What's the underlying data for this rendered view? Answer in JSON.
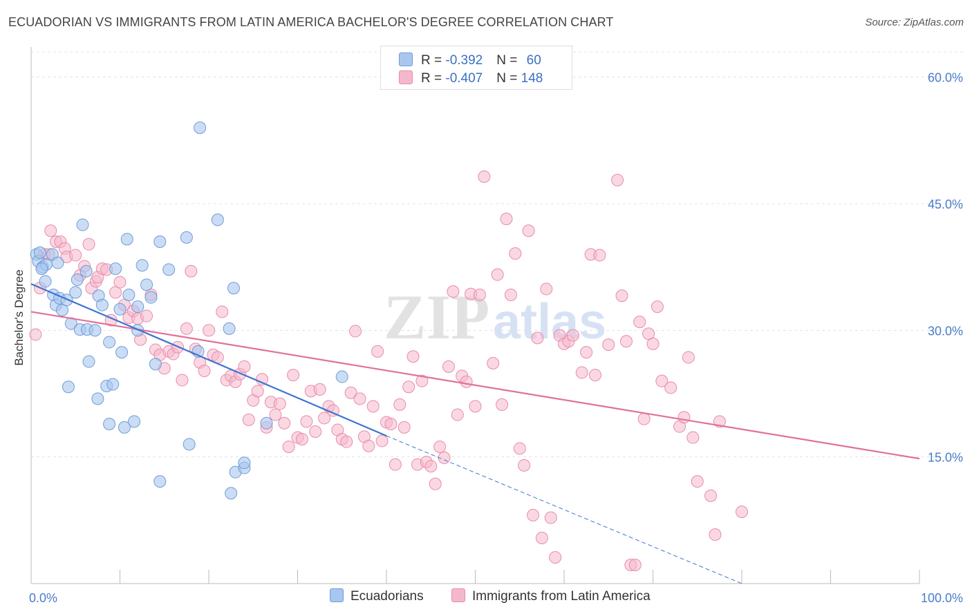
{
  "title": "ECUADORIAN VS IMMIGRANTS FROM LATIN AMERICA BACHELOR'S DEGREE CORRELATION CHART",
  "source": "Source: ZipAtlas.com",
  "watermark": {
    "zip": "ZIP",
    "atlas": "atlas"
  },
  "legend_top": [
    {
      "r_label": "R = ",
      "r_value": "-0.392",
      "n_label": "N = ",
      "n_value": "60"
    },
    {
      "r_label": "R = ",
      "r_value": "-0.407",
      "n_label": "N = ",
      "n_value": "148"
    }
  ],
  "legend_bottom": [
    "Ecuadorians",
    "Immigrants from Latin America"
  ],
  "colors": {
    "blue_fill": "#a9c6ef",
    "blue_stroke": "#6f9bd8",
    "blue_line": "#3a74d0",
    "pink_fill": "#f5b8cb",
    "pink_stroke": "#e98aab",
    "pink_line": "#e0709a",
    "grid": "#e3e3e3",
    "tick_text": "#4a7cc9"
  },
  "chart_data": {
    "type": "scatter",
    "title": "ECUADORIAN VS IMMIGRANTS FROM LATIN AMERICA BACHELOR'S DEGREE CORRELATION CHART",
    "xlabel": "",
    "ylabel": "Bachelor's Degree",
    "xlim": [
      0,
      100
    ],
    "ylim": [
      0,
      63
    ],
    "x_tick_labels": [
      "0.0%",
      "100.0%"
    ],
    "y_ticks": [
      15,
      30,
      45,
      60
    ],
    "y_tick_labels": [
      "15.0%",
      "30.0%",
      "45.0%",
      "60.0%"
    ],
    "grid": true,
    "series": [
      {
        "name": "Ecuadorians",
        "r": -0.392,
        "n": 60,
        "trend": {
          "x0": 0,
          "y0": 35.5,
          "x1": 40,
          "y1": 17.5,
          "dashed_to_x": 80,
          "dashed_to_y": 0
        },
        "points": [
          [
            0.6,
            39
          ],
          [
            0.8,
            38.2
          ],
          [
            1,
            39.2
          ],
          [
            1.3,
            37.5
          ],
          [
            1.7,
            37.8
          ],
          [
            1.6,
            35.8
          ],
          [
            2.4,
            39
          ],
          [
            2.5,
            34.2
          ],
          [
            2.8,
            33
          ],
          [
            3.2,
            33.8
          ],
          [
            3.5,
            32.4
          ],
          [
            4,
            33.6
          ],
          [
            4.2,
            23.3
          ],
          [
            4.5,
            30.8
          ],
          [
            5,
            34.5
          ],
          [
            5.2,
            36
          ],
          [
            5.5,
            30.1
          ],
          [
            6.2,
            37
          ],
          [
            6.3,
            30.1
          ],
          [
            6.5,
            26.3
          ],
          [
            7.2,
            30
          ],
          [
            7.5,
            21.9
          ],
          [
            7.6,
            34.1
          ],
          [
            8,
            33
          ],
          [
            8.5,
            23.4
          ],
          [
            8.8,
            28.6
          ],
          [
            8.8,
            18.9
          ],
          [
            9.2,
            23.6
          ],
          [
            9.5,
            37.3
          ],
          [
            10,
            32.5
          ],
          [
            10.2,
            27.4
          ],
          [
            10.5,
            18.5
          ],
          [
            10.8,
            40.8
          ],
          [
            11,
            34.2
          ],
          [
            11.6,
            19.2
          ],
          [
            12,
            30
          ],
          [
            12,
            32.8
          ],
          [
            12.5,
            37.7
          ],
          [
            13,
            35.4
          ],
          [
            13.5,
            33.9
          ],
          [
            14,
            26
          ],
          [
            14.5,
            12.1
          ],
          [
            14.5,
            40.5
          ],
          [
            15.5,
            37.2
          ],
          [
            17.5,
            41
          ],
          [
            17.8,
            16.5
          ],
          [
            18.8,
            27.5
          ],
          [
            19,
            54
          ],
          [
            21,
            43.1
          ],
          [
            22.3,
            30.2
          ],
          [
            22.5,
            10.7
          ],
          [
            22.8,
            35
          ],
          [
            23,
            13.2
          ],
          [
            24,
            13.7
          ],
          [
            24,
            14.3
          ],
          [
            26.5,
            19
          ],
          [
            35,
            24.5
          ],
          [
            5.8,
            42.5
          ],
          [
            3,
            38
          ],
          [
            1.2,
            37.3
          ]
        ]
      },
      {
        "name": "Immigrants from Latin America",
        "r": -0.407,
        "n": 148,
        "trend": {
          "x0": 0,
          "y0": 32.2,
          "x1": 100,
          "y1": 14.8
        },
        "points": [
          [
            0.5,
            29.5
          ],
          [
            1,
            35
          ],
          [
            1.5,
            39
          ],
          [
            2,
            39
          ],
          [
            2.2,
            41.8
          ],
          [
            2.8,
            40.5
          ],
          [
            3.3,
            40.5
          ],
          [
            3.8,
            39.7
          ],
          [
            4,
            38.7
          ],
          [
            5,
            38.9
          ],
          [
            5.5,
            36.5
          ],
          [
            6,
            37.6
          ],
          [
            6.5,
            40.2
          ],
          [
            6.8,
            35
          ],
          [
            7.3,
            35.8
          ],
          [
            7.5,
            36.3
          ],
          [
            8,
            37.3
          ],
          [
            8.5,
            37.2
          ],
          [
            9,
            31.2
          ],
          [
            9.5,
            34.5
          ],
          [
            10,
            35.7
          ],
          [
            10.5,
            33
          ],
          [
            11,
            31.5
          ],
          [
            11.5,
            32.3
          ],
          [
            12,
            31.4
          ],
          [
            12.3,
            28.9
          ],
          [
            13,
            31.7
          ],
          [
            13.5,
            34.2
          ],
          [
            14,
            27.7
          ],
          [
            14.5,
            27.1
          ],
          [
            15,
            25.5
          ],
          [
            15.5,
            27.5
          ],
          [
            16,
            27.2
          ],
          [
            16.5,
            28
          ],
          [
            17,
            24.1
          ],
          [
            17.5,
            30.2
          ],
          [
            18,
            37
          ],
          [
            18.5,
            27.8
          ],
          [
            19,
            26.2
          ],
          [
            19.5,
            25.2
          ],
          [
            20,
            30
          ],
          [
            20.5,
            27.1
          ],
          [
            21,
            26.8
          ],
          [
            21.5,
            32.2
          ],
          [
            22,
            24.1
          ],
          [
            22.5,
            24.6
          ],
          [
            23,
            23.9
          ],
          [
            23.5,
            24.8
          ],
          [
            24,
            25.7
          ],
          [
            24.5,
            19.4
          ],
          [
            25,
            21.7
          ],
          [
            25.5,
            22.8
          ],
          [
            26,
            24.2
          ],
          [
            26.5,
            18.5
          ],
          [
            27,
            21.5
          ],
          [
            27.5,
            20
          ],
          [
            28,
            21.3
          ],
          [
            28.5,
            19
          ],
          [
            29,
            16.2
          ],
          [
            29.5,
            24.7
          ],
          [
            30,
            17.3
          ],
          [
            30.5,
            17.1
          ],
          [
            31,
            19.2
          ],
          [
            31.5,
            22.8
          ],
          [
            32,
            18
          ],
          [
            32.5,
            23
          ],
          [
            33,
            19.6
          ],
          [
            33.5,
            21
          ],
          [
            34,
            20.5
          ],
          [
            34.5,
            18.2
          ],
          [
            35,
            17.1
          ],
          [
            35.5,
            16.8
          ],
          [
            36,
            22.6
          ],
          [
            36.5,
            29.9
          ],
          [
            37,
            21.9
          ],
          [
            37.5,
            17.4
          ],
          [
            38,
            16.3
          ],
          [
            38.5,
            21
          ],
          [
            39,
            27.5
          ],
          [
            39.5,
            16.9
          ],
          [
            40,
            19.1
          ],
          [
            40.5,
            18.9
          ],
          [
            41,
            14.1
          ],
          [
            41.5,
            21.2
          ],
          [
            42,
            18.5
          ],
          [
            42.5,
            23.3
          ],
          [
            43,
            26.9
          ],
          [
            43.5,
            14.1
          ],
          [
            44,
            24
          ],
          [
            44.5,
            14.4
          ],
          [
            45,
            13.9
          ],
          [
            45.5,
            11.8
          ],
          [
            46,
            16.2
          ],
          [
            46.5,
            14.9
          ],
          [
            47,
            25.7
          ],
          [
            47.5,
            34.6
          ],
          [
            48,
            20
          ],
          [
            48.5,
            24.6
          ],
          [
            49,
            23.9
          ],
          [
            49.5,
            34.3
          ],
          [
            50,
            21
          ],
          [
            50.5,
            34.2
          ],
          [
            51,
            48.2
          ],
          [
            52,
            26.1
          ],
          [
            52.5,
            36.6
          ],
          [
            53,
            21.2
          ],
          [
            53.5,
            43.2
          ],
          [
            54,
            34.2
          ],
          [
            54.5,
            39.1
          ],
          [
            55,
            16
          ],
          [
            55.5,
            14
          ],
          [
            56,
            41.8
          ],
          [
            56.5,
            8.1
          ],
          [
            57,
            29.1
          ],
          [
            57.5,
            5.4
          ],
          [
            58,
            34.9
          ],
          [
            58.5,
            7.8
          ],
          [
            59,
            3.1
          ],
          [
            59.5,
            29.4
          ],
          [
            60,
            28.4
          ],
          [
            60.5,
            28.7
          ],
          [
            61,
            29.4
          ],
          [
            62,
            25
          ],
          [
            62.5,
            27.4
          ],
          [
            63,
            39
          ],
          [
            63.5,
            24.7
          ],
          [
            64,
            38.9
          ],
          [
            65,
            28.3
          ],
          [
            66,
            47.8
          ],
          [
            66.5,
            34.1
          ],
          [
            67,
            28.7
          ],
          [
            67.5,
            2.2
          ],
          [
            68,
            2.2
          ],
          [
            68.5,
            31
          ],
          [
            69,
            19.5
          ],
          [
            69.5,
            29.6
          ],
          [
            70,
            28.4
          ],
          [
            70.5,
            32.8
          ],
          [
            71,
            24
          ],
          [
            72,
            23.2
          ],
          [
            73,
            18.6
          ],
          [
            73.5,
            19.7
          ],
          [
            74,
            26.8
          ],
          [
            74.5,
            17.3
          ],
          [
            75,
            12.1
          ],
          [
            76.5,
            10.4
          ],
          [
            77,
            5.8
          ],
          [
            77.5,
            19.2
          ],
          [
            80,
            8.5
          ]
        ]
      }
    ]
  }
}
